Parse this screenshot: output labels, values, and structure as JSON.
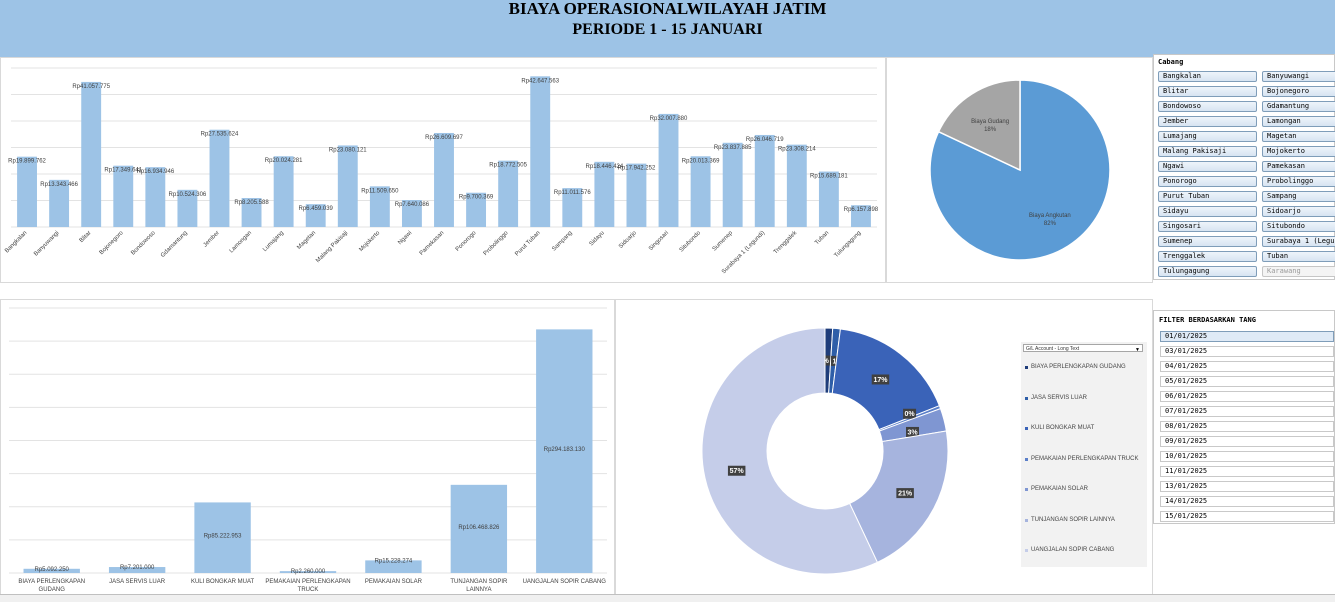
{
  "header": {
    "title": "BIAYA OPERASIONALWILAYAH JATIM",
    "subtitle": "PERIODE 1 - 15 JANUARI"
  },
  "chart_data": [
    {
      "type": "bar",
      "categories": [
        "Bangkalan",
        "Banyuwangi",
        "Blitar",
        "Bojonegoro",
        "Bondowoso",
        "Gdamantung",
        "Jember",
        "Lamongan",
        "Lumajang",
        "Magetan",
        "Malang Pakisaji",
        "Mojokerto",
        "Ngawi",
        "Pamekasan",
        "Ponorogo",
        "Probolinggo",
        "Purut Tuban",
        "Sampang",
        "Sidayu",
        "Sidoarjo",
        "Singosari",
        "Situbondo",
        "Sumenep",
        "Surabaya 1 (Legundi)",
        "Trenggalek",
        "Tuban",
        "Tulungagung"
      ],
      "values": [
        19899762,
        13343466,
        41057775,
        17349641,
        16934946,
        10524306,
        27535624,
        8205588,
        20024281,
        6459039,
        23080121,
        11509650,
        7640086,
        26609697,
        9700369,
        18772505,
        42647563,
        11011576,
        18446424,
        17942252,
        32007880,
        20013369,
        23837885,
        26046719,
        23308214,
        15689181,
        6157898
      ],
      "labels": [
        "Rp19.899.762",
        "Rp13.343.466",
        "Rp41.057.775",
        "Rp17.349.641",
        "Rp16.934.946",
        "Rp10.524.306",
        "Rp27.535.624",
        "Rp8.205.588",
        "Rp20.024.281",
        "Rp6.459.039",
        "Rp23.080.121",
        "Rp11.509.650",
        "Rp7.640.086",
        "Rp26.609.697",
        "Rp9.700.369",
        "Rp18.772.505",
        "Rp42.647.563",
        "Rp11.011.576",
        "Rp18.446.424",
        "Rp17.942.252",
        "Rp32.007.880",
        "Rp20.013.369",
        "Rp23.837.885",
        "Rp26.046.719",
        "Rp23.308.214",
        "Rp15.689.181",
        "Rp6.157.898"
      ],
      "ylim": [
        0,
        45000000
      ],
      "grid": true,
      "color": "#9dc3e6"
    },
    {
      "type": "pie",
      "slices": [
        {
          "name": "Biaya Angkutan",
          "value": 82,
          "label": "82%",
          "color": "#5b9bd5"
        },
        {
          "name": "Biaya Gudang",
          "value": 18,
          "label": "18%",
          "color": "#a5a5a5"
        }
      ]
    },
    {
      "type": "bar",
      "categories": [
        "BIAYA PERLENGKAPAN GUDANG",
        "JASA SERVIS LUAR",
        "KULI BONGKAR MUAT",
        "PEMAKAIAN PERLENGKAPAN TRUCK",
        "PEMAKAIAN SOLAR",
        "TUNJANGAN SOPIR LAINNYA",
        "UANGJALAN SOPIR CABANG"
      ],
      "values": [
        5092250,
        7201000,
        85222953,
        2260000,
        15228274,
        106468826,
        294183130
      ],
      "labels": [
        "Rp5.092.250",
        "Rp7.201.000",
        "Rp85.222.953",
        "Rp2.260.000",
        "Rp15.228.274",
        "Rp106.468.826",
        "Rp294.183.130"
      ],
      "ylim": [
        0,
        320000000
      ],
      "grid": true,
      "color": "#9dc3e6"
    },
    {
      "type": "pie",
      "subtype": "doughnut",
      "legend_placement": "right",
      "legend_header": "G/L Account - Long Text",
      "slices": [
        {
          "name": "BIAYA PERLENGKAPAN GUDANG",
          "value": 1,
          "label": "1%",
          "color": "#1f3d7a"
        },
        {
          "name": "JASA SERVIS LUAR",
          "value": 1,
          "label": "1%",
          "color": "#2e5ea8"
        },
        {
          "name": "KULI BONGKAR MUAT",
          "value": 17,
          "label": "17%",
          "color": "#3a63b8"
        },
        {
          "name": "PEMAKAIAN PERLENGKAPAN TRUCK",
          "value": 0.4,
          "label": "0%",
          "color": "#5b7fc9"
        },
        {
          "name": "PEMAKAIAN SOLAR",
          "value": 3,
          "label": "3%",
          "color": "#7f96d2"
        },
        {
          "name": "TUNJANGAN SOPIR LAINNYA",
          "value": 20.6,
          "label": "21%",
          "color": "#a6b4de"
        },
        {
          "name": "UANGJALAN SOPIR CABANG",
          "value": 57,
          "label": "57%",
          "color": "#c5cde9"
        }
      ]
    }
  ],
  "slicer_cabang": {
    "title": "Cabang",
    "items": [
      {
        "label": "Bangkalan",
        "dim": false
      },
      {
        "label": "Banyuwangi",
        "dim": false
      },
      {
        "label": "Blitar",
        "dim": false
      },
      {
        "label": "Bojonegoro",
        "dim": false
      },
      {
        "label": "Bondowoso",
        "dim": false
      },
      {
        "label": "Gdamantung",
        "dim": false
      },
      {
        "label": "Jember",
        "dim": false
      },
      {
        "label": "Lamongan",
        "dim": false
      },
      {
        "label": "Lumajang",
        "dim": false
      },
      {
        "label": "Magetan",
        "dim": false
      },
      {
        "label": "Malang Pakisaji",
        "dim": false
      },
      {
        "label": "Mojokerto",
        "dim": false
      },
      {
        "label": "Ngawi",
        "dim": false
      },
      {
        "label": "Pamekasan",
        "dim": false
      },
      {
        "label": "Ponorogo",
        "dim": false
      },
      {
        "label": "Probolinggo",
        "dim": false
      },
      {
        "label": "Purut Tuban",
        "dim": false
      },
      {
        "label": "Sampang",
        "dim": false
      },
      {
        "label": "Sidayu",
        "dim": false
      },
      {
        "label": "Sidoarjo",
        "dim": false
      },
      {
        "label": "Singosari",
        "dim": false
      },
      {
        "label": "Situbondo",
        "dim": false
      },
      {
        "label": "Sumenep",
        "dim": false
      },
      {
        "label": "Surabaya 1 (Legundi)",
        "dim": false
      },
      {
        "label": "Trenggalek",
        "dim": false
      },
      {
        "label": "Tuban",
        "dim": false
      },
      {
        "label": "Tulungagung",
        "dim": false
      },
      {
        "label": "Karawang",
        "dim": true
      }
    ]
  },
  "slicer_tanggal": {
    "title": "FILTER BERDASARKAN TANG",
    "items": [
      {
        "label": "01/01/2025",
        "selected": true
      },
      {
        "label": "03/01/2025",
        "selected": false
      },
      {
        "label": "04/01/2025",
        "selected": false
      },
      {
        "label": "05/01/2025",
        "selected": false
      },
      {
        "label": "06/01/2025",
        "selected": false
      },
      {
        "label": "07/01/2025",
        "selected": false
      },
      {
        "label": "08/01/2025",
        "selected": false
      },
      {
        "label": "09/01/2025",
        "selected": false
      },
      {
        "label": "10/01/2025",
        "selected": false
      },
      {
        "label": "11/01/2025",
        "selected": false
      },
      {
        "label": "13/01/2025",
        "selected": false
      },
      {
        "label": "14/01/2025",
        "selected": false
      },
      {
        "label": "15/01/2025",
        "selected": false
      }
    ]
  }
}
